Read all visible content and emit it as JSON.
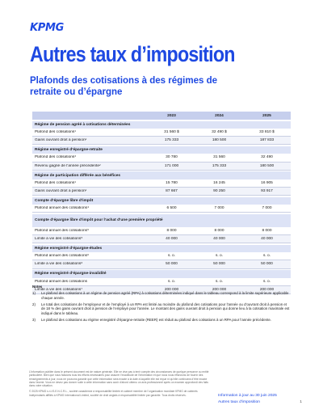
{
  "logo": "KPMG",
  "title": "Autres taux d’imposition",
  "subtitle": "Plafonds des cotisations à des régimes de retraite ou d’épargne",
  "table": {
    "years": [
      "2023",
      "2024",
      "2025"
    ],
    "sections": [
      {
        "title": "Régime de pension agréé à cotisations déterminées",
        "rows": [
          {
            "label": "Plafond des cotisations¹",
            "values": [
              "31 560 $",
              "32 490 $",
              "33 810 $"
            ]
          },
          {
            "label": "Gains ouvrant droit à pension²",
            "values": [
              "175 333",
              "180 500",
              "187 833"
            ]
          }
        ]
      },
      {
        "title": "Régime enregistré d’épargne-retraite",
        "rows": [
          {
            "label": "Plafond des cotisations³",
            "values": [
              "30 780",
              "31 560",
              "32 490"
            ]
          },
          {
            "label": "Revenu gagné de l’année précédente²",
            "values": [
              "171 000",
              "175 333",
              "180 500"
            ]
          }
        ]
      },
      {
        "title": "Régime de participation différée aux bénéfices",
        "rows": [
          {
            "label": "Plafond des cotisations¹",
            "values": [
              "15 780",
              "16 245",
              "16 905"
            ]
          },
          {
            "label": "Gains ouvrant droit à pension²",
            "values": [
              "87 667",
              "90 250",
              "93 917"
            ]
          }
        ]
      },
      {
        "title": "Compte d’épargne libre d’impôt",
        "rows": [
          {
            "label": "Plafond annuel des cotisations⁴",
            "values": [
              "6 500",
              "7 000",
              "7 000"
            ]
          }
        ]
      },
      {
        "title": "Compte d’épargne libre d’impôt pour l’achat d’une première propriété",
        "tall": true,
        "rows": [
          {
            "label": "Plafond annuel des cotisations⁵",
            "values": [
              "8 000",
              "8 000",
              "8 000"
            ]
          },
          {
            "label": "Limite à vie des cotisations⁵",
            "values": [
              "40 000",
              "40 000",
              "40 000"
            ]
          }
        ]
      },
      {
        "title": "Régime enregistré d’épargne-études",
        "rows": [
          {
            "label": "Plafond annuel des cotisations⁶",
            "values": [
              "s. o.",
              "s. o.",
              "s. o."
            ]
          },
          {
            "label": "Limite à vie des cotisations⁶",
            "values": [
              "50 000",
              "50 000",
              "50 000"
            ]
          }
        ]
      },
      {
        "title": "Régime enregistré d’épargne-invalidité",
        "rows": [
          {
            "label": "Plafond annuel des cotisations",
            "values": [
              "s. o.",
              "s. o.",
              "s. o."
            ]
          },
          {
            "label": "Limite à vie des cotisations⁷",
            "values": [
              "200 000",
              "200 000",
              "200 000"
            ]
          }
        ]
      }
    ]
  },
  "notes": {
    "title": "Notes",
    "items": [
      {
        "num": "1)",
        "text": "Le plafond des cotisations à un régime de pension agréé (RPA) à cotisations déterminées indiqué dans le tableau correspond à la limite supérieure applicable chaque année."
      },
      {
        "num": "2)",
        "text": "Le total des cotisations de l’employeur et de l’employé à un RPA est limité au moindre du plafond des cotisations pour l’année ou d’ouvrant droit à pension et de 18 % des gains ouvrant droit à pension de l’employé pour l’année. Le montant des gains ouvrant droit à pension qui donne lieu à la cotisation maximale est indiqué dans le tableau."
      },
      {
        "num": "3)",
        "text": "Le plafond des cotisations au régime enregistré d’épargne-retraite (REER) est réduit au plafond des cotisations à un RPA pour l’année précédente."
      }
    ]
  },
  "disclaimer": [
    "L’information publiée dans le présent document est de nature générale. Elle ne vise pas à tenir compte des circonstances de quelque personne ou entité particulière. Bien que nous fassions tous les efforts nécessaires pour assurer l’exactitude de l’information et que nous nous efforcions de fournir des renseignements à jour, nous ne pouvons garantir que cette information sera exacte à la date à laquelle elle est reçue ni qu’elle continuera d’être exacte dans l’avenir. Vous ne devez pas donner suite à cette information sans avoir d’abord obtenu un avis professionnel après un examen approfondi des faits dans votre situation.",
    "© 2025 KPMG s.r.l./S.E.N.C.R.L., société canadienne à responsabilité limitée et cabinet membre de l’organisation mondiale KPMG de cabinets indépendants affiliés à KPMG International Limited, société de droit anglais à responsabilité limitée par garantie. Tous droits réservés."
  ],
  "footer": {
    "date": "Information à jour au 30 juin 2025",
    "section": "Autres taux d’imposition",
    "page": "1"
  }
}
